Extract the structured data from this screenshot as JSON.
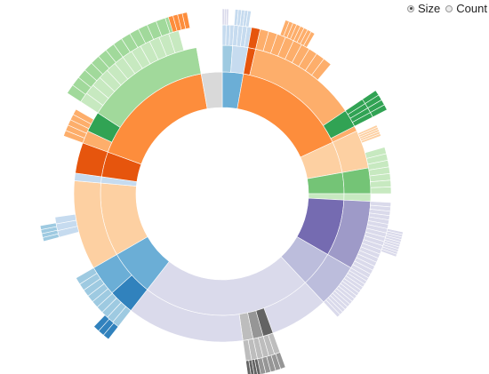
{
  "controls": {
    "options": [
      {
        "label": "Size",
        "checked": true
      },
      {
        "label": "Count",
        "checked": false
      }
    ]
  },
  "chart_data": {
    "type": "sunburst",
    "title": "",
    "value_mode": "Size",
    "colors": {
      "root": "#d9d9d9",
      "blue": [
        "#3182bd",
        "#6baed6",
        "#9ecae1",
        "#c6dbef"
      ],
      "orange": [
        "#e6550d",
        "#fd8d3c",
        "#fdae6b",
        "#fdd0a2"
      ],
      "green": [
        "#31a354",
        "#74c476",
        "#a1d99b",
        "#c7e9c0"
      ],
      "purple": [
        "#756bb1",
        "#9e9ac8",
        "#bcbddc",
        "#dadaeb"
      ],
      "gray": [
        "#636363",
        "#969696",
        "#bdbdbd",
        "#d9d9d9"
      ]
    },
    "ring1": [
      {
        "a0": 0,
        "a1": 10,
        "color": "#6baed6"
      },
      {
        "a0": 10,
        "a1": 65,
        "color": "#fd8d3c"
      },
      {
        "a0": 65,
        "a1": 80,
        "color": "#fdd0a2"
      },
      {
        "a0": 80,
        "a1": 90,
        "color": "#74c476"
      },
      {
        "a0": 90,
        "a1": 93,
        "color": "#c7e9c0"
      },
      {
        "a0": 93,
        "a1": 120,
        "color": "#756bb1"
      },
      {
        "a0": 120,
        "a1": 137,
        "color": "#bcbddc"
      },
      {
        "a0": 137,
        "a1": 218,
        "color": "#dadaeb"
      },
      {
        "a0": 218,
        "a1": 240,
        "color": "#6baed6"
      },
      {
        "a0": 240,
        "a1": 275,
        "color": "#fdd0a2"
      },
      {
        "a0": 275,
        "a1": 278,
        "color": "#c6dbef"
      },
      {
        "a0": 278,
        "a1": 290,
        "color": "#e6550d"
      },
      {
        "a0": 290,
        "a1": 350,
        "color": "#fd8d3c"
      },
      {
        "a0": 350,
        "a1": 360,
        "color": "#d9d9d9"
      }
    ],
    "ring2": [
      {
        "a0": 0,
        "a1": 4,
        "color": "#9ecae1"
      },
      {
        "a0": 4,
        "a1": 10,
        "color": "#c6dbef"
      },
      {
        "a0": 10,
        "a1": 13,
        "color": "#e6550d"
      },
      {
        "a0": 13,
        "a1": 65,
        "color": "#fdae6b"
      },
      {
        "a0": 56,
        "a1": 63,
        "color": "#31a354"
      },
      {
        "a0": 65,
        "a1": 80,
        "color": "#fdd0a2"
      },
      {
        "a0": 80,
        "a1": 90,
        "color": "#74c476"
      },
      {
        "a0": 90,
        "a1": 93,
        "color": "#c7e9c0"
      },
      {
        "a0": 93,
        "a1": 120,
        "color": "#9e9ac8"
      },
      {
        "a0": 120,
        "a1": 137,
        "color": "#bcbddc"
      },
      {
        "a0": 137,
        "a1": 160,
        "color": "#dadaeb"
      },
      {
        "a0": 160,
        "a1": 164,
        "color": "#636363"
      },
      {
        "a0": 164,
        "a1": 168,
        "color": "#969696"
      },
      {
        "a0": 168,
        "a1": 172,
        "color": "#bdbdbd"
      },
      {
        "a0": 172,
        "a1": 218,
        "color": "#dadaeb"
      },
      {
        "a0": 218,
        "a1": 228,
        "color": "#3182bd"
      },
      {
        "a0": 228,
        "a1": 240,
        "color": "#6baed6"
      },
      {
        "a0": 240,
        "a1": 275,
        "color": "#fdd0a2"
      },
      {
        "a0": 275,
        "a1": 278,
        "color": "#c6dbef"
      },
      {
        "a0": 278,
        "a1": 290,
        "color": "#e6550d"
      },
      {
        "a0": 290,
        "a1": 295,
        "color": "#fdae6b"
      },
      {
        "a0": 295,
        "a1": 303,
        "color": "#31a354"
      },
      {
        "a0": 303,
        "a1": 350,
        "color": "#a1d99b"
      },
      {
        "a0": 350,
        "a1": 360,
        "color": "#ffffff"
      }
    ],
    "ring3": [
      {
        "a0": 0,
        "a1": 4,
        "color": "#c6dbef",
        "n": 3
      },
      {
        "a0": 4,
        "a1": 10,
        "color": "#c6dbef",
        "n": 4
      },
      {
        "a0": 10,
        "a1": 13,
        "color": "#e6550d",
        "n": 1
      },
      {
        "a0": 13,
        "a1": 40,
        "color": "#fdae6b",
        "n": 9
      },
      {
        "a0": 56,
        "a1": 63,
        "color": "#31a354",
        "n": 4
      },
      {
        "a0": 66,
        "a1": 70,
        "color": "#fdd0a2",
        "n": 5
      },
      {
        "a0": 74,
        "a1": 90,
        "color": "#c7e9c0",
        "n": 7
      },
      {
        "a0": 93,
        "a1": 120,
        "color": "#dadaeb",
        "n": 18
      },
      {
        "a0": 120,
        "a1": 137,
        "color": "#dadaeb",
        "n": 14
      },
      {
        "a0": 160,
        "a1": 172,
        "color": "#bdbdbd",
        "n": 6
      },
      {
        "a0": 218,
        "a1": 240,
        "color": "#9ecae1",
        "n": 9
      },
      {
        "a0": 255,
        "a1": 262,
        "color": "#c6dbef",
        "n": 3
      },
      {
        "a0": 290,
        "a1": 300,
        "color": "#fdae6b",
        "n": 5
      },
      {
        "a0": 303,
        "a1": 345,
        "color": "#c7e9c0",
        "n": 12
      }
    ],
    "ring4": [
      {
        "a0": 0,
        "a1": 2,
        "color": "#dadaeb",
        "n": 3
      },
      {
        "a0": 4,
        "a1": 9,
        "color": "#c6dbef",
        "n": 5
      },
      {
        "a0": 20,
        "a1": 30,
        "color": "#fdae6b",
        "n": 8
      },
      {
        "a0": 56,
        "a1": 63,
        "color": "#31a354",
        "n": 4
      },
      {
        "a0": 102,
        "a1": 110,
        "color": "#dadaeb",
        "n": 10
      },
      {
        "a0": 160,
        "a1": 168,
        "color": "#969696",
        "n": 5
      },
      {
        "a0": 168,
        "a1": 172,
        "color": "#636363",
        "n": 4
      },
      {
        "a0": 218,
        "a1": 224,
        "color": "#3182bd",
        "n": 3
      },
      {
        "a0": 255,
        "a1": 260,
        "color": "#9ecae1",
        "n": 4
      },
      {
        "a0": 303,
        "a1": 345,
        "color": "#a1d99b",
        "n": 14
      },
      {
        "a0": 343,
        "a1": 349,
        "color": "#fd8d3c",
        "n": 4
      }
    ]
  }
}
